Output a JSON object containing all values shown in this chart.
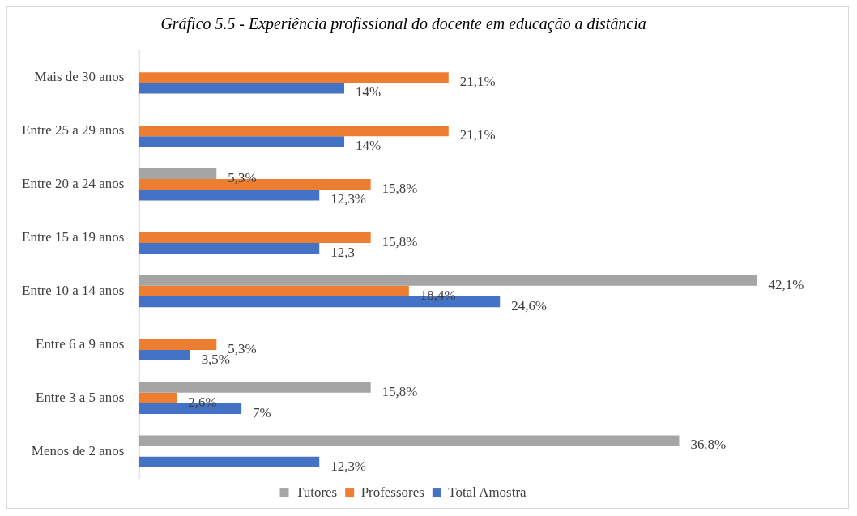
{
  "chart_data": {
    "type": "bar",
    "orientation": "horizontal",
    "title": "Gráfico 5.5 - Experiência profissional do docente em educação a distância",
    "categories": [
      "Mais de 30 anos",
      "Entre 25 a 29 anos",
      "Entre 20 a 24 anos",
      "Entre 15 a 19 anos",
      "Entre 10 a 14 anos",
      "Entre 6 a 9 anos",
      "Entre 3 a 5 anos",
      "Menos de 2 anos"
    ],
    "series": [
      {
        "name": "Tutores",
        "color": "#a5a5a5",
        "values": [
          null,
          null,
          5.3,
          null,
          42.1,
          null,
          15.8,
          36.8
        ],
        "value_labels": [
          null,
          null,
          "5,3%",
          null,
          "42,1%",
          null,
          "15,8%",
          "36,8%"
        ]
      },
      {
        "name": "Professores",
        "color": "#ed7d31",
        "values": [
          21.1,
          21.1,
          15.8,
          15.8,
          18.4,
          5.3,
          2.6,
          null
        ],
        "value_labels": [
          "21,1%",
          "21,1%",
          "15,8%",
          "15,8%",
          "18,4%",
          "5,3%",
          "2,6%",
          null
        ]
      },
      {
        "name": "Total Amostra",
        "color": "#4472c4",
        "values": [
          14,
          14,
          12.3,
          12.3,
          24.6,
          3.5,
          7,
          12.3
        ],
        "value_labels": [
          "14%",
          "14%",
          "12,3%",
          "12,3",
          "24,6%",
          "3,5%",
          "7%",
          "12,3%"
        ]
      }
    ],
    "grid": false,
    "legend": "bottom"
  }
}
